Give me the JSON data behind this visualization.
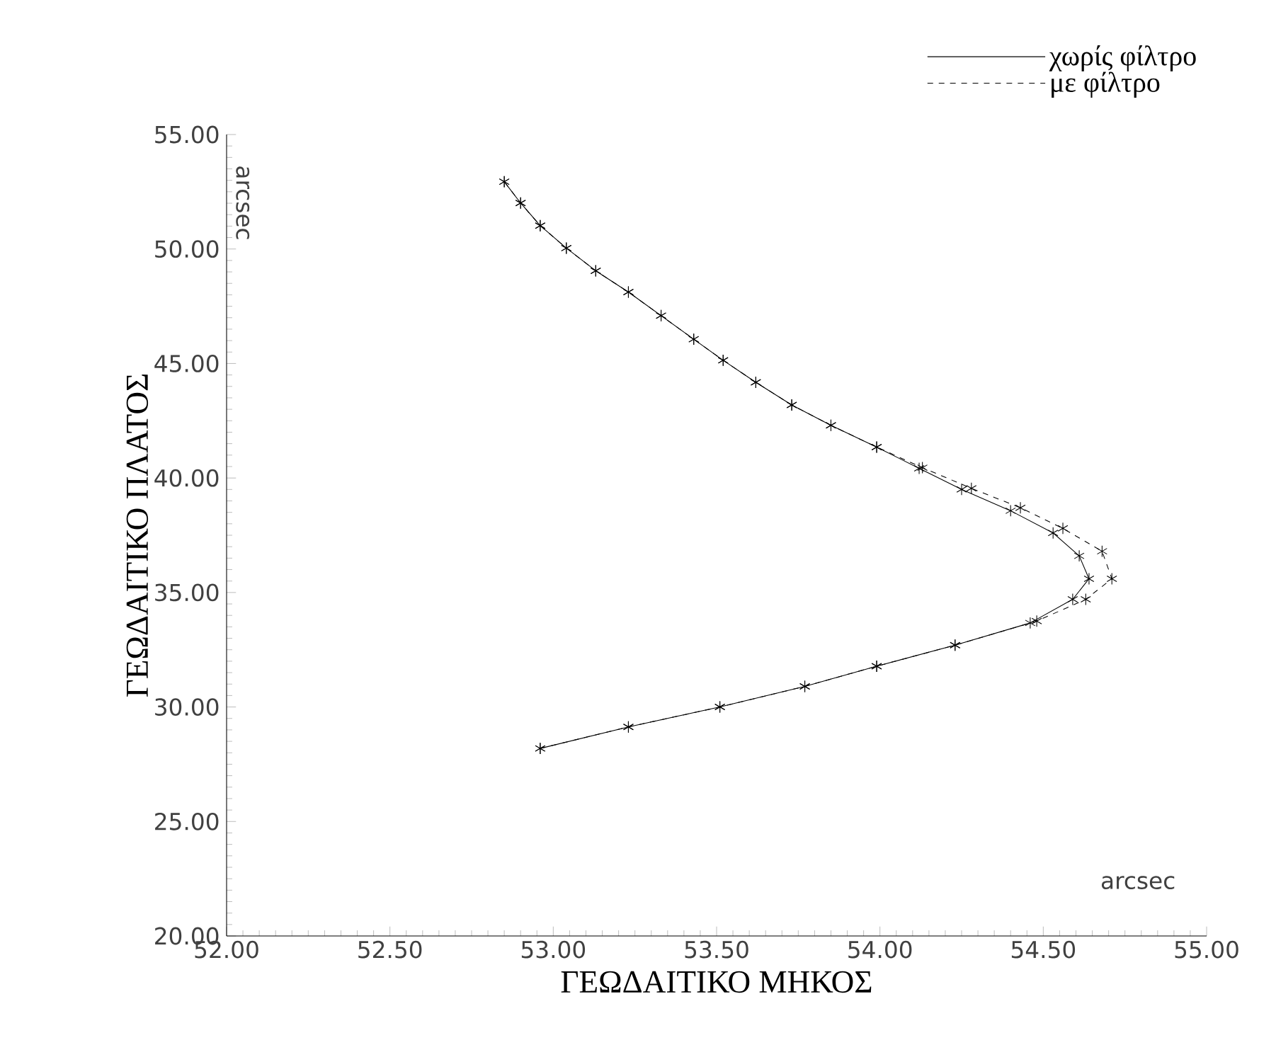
{
  "chart_data": {
    "type": "line",
    "xlabel": "ΓΕΩΔΑΙΤΙΚΟ ΜΗΚΟΣ",
    "ylabel": "ΓΕΩΔΑΙΤΙΚΟ ΠΛΑΤΟΣ",
    "annotations": [
      "arcsec",
      "arcsec"
    ],
    "xlim": [
      52,
      55
    ],
    "ylim": [
      20,
      55
    ],
    "xticks": [
      {
        "value": 52,
        "label": "52.00"
      },
      {
        "value": 52.5,
        "label": "52.50"
      },
      {
        "value": 53,
        "label": "53.00"
      },
      {
        "value": 53.5,
        "label": "53.50"
      },
      {
        "value": 54,
        "label": "54.00"
      },
      {
        "value": 54.5,
        "label": "54.50"
      },
      {
        "value": 55,
        "label": "55.00"
      }
    ],
    "yticks": [
      {
        "value": 20,
        "label": "20.00"
      },
      {
        "value": 25,
        "label": "25.00"
      },
      {
        "value": 30,
        "label": "30.00"
      },
      {
        "value": 35,
        "label": "35.00"
      },
      {
        "value": 40,
        "label": "40.00"
      },
      {
        "value": 45,
        "label": "45.00"
      },
      {
        "value": 50,
        "label": "50.00"
      },
      {
        "value": 55,
        "label": "55.00"
      }
    ],
    "legend": "top right",
    "marker": "cross",
    "grid": false,
    "series": [
      {
        "name": "χωρίς φίλτρο",
        "color": "#000000",
        "line_style": "solid",
        "x": [
          52.96,
          53.23,
          53.51,
          53.77,
          53.99,
          54.23,
          54.46,
          54.59,
          54.64,
          54.61,
          54.53,
          54.4,
          54.25,
          54.12,
          53.99,
          53.85,
          53.73,
          53.62,
          53.52,
          53.43,
          53.33,
          53.23,
          53.13,
          53.04,
          52.96,
          52.9,
          52.85
        ],
        "values": [
          28.19,
          29.13,
          30.0,
          30.9,
          31.78,
          32.7,
          33.67,
          34.7,
          35.6,
          36.6,
          37.6,
          38.57,
          39.5,
          40.42,
          41.35,
          42.3,
          43.19,
          44.18,
          45.14,
          46.06,
          47.09,
          48.12,
          49.05,
          50.04,
          51.02,
          52.01,
          52.94
        ]
      },
      {
        "name": "με φίλτρο",
        "color": "#000000",
        "line_style": "dashed",
        "x": [
          52.96,
          53.23,
          53.51,
          53.77,
          53.99,
          54.23,
          54.48,
          54.63,
          54.71,
          54.68,
          54.56,
          54.43,
          54.28,
          54.13,
          53.99,
          53.85,
          53.73,
          53.62,
          53.52,
          53.43,
          53.33,
          53.23,
          53.13,
          53.04,
          52.96,
          52.9,
          52.85
        ],
        "values": [
          28.19,
          29.13,
          30.0,
          30.9,
          31.78,
          32.7,
          33.75,
          34.7,
          35.6,
          36.8,
          37.8,
          38.7,
          39.55,
          40.45,
          41.35,
          42.3,
          43.19,
          44.18,
          45.14,
          46.06,
          47.09,
          48.12,
          49.05,
          50.04,
          51.02,
          52.01,
          52.94
        ]
      }
    ]
  }
}
